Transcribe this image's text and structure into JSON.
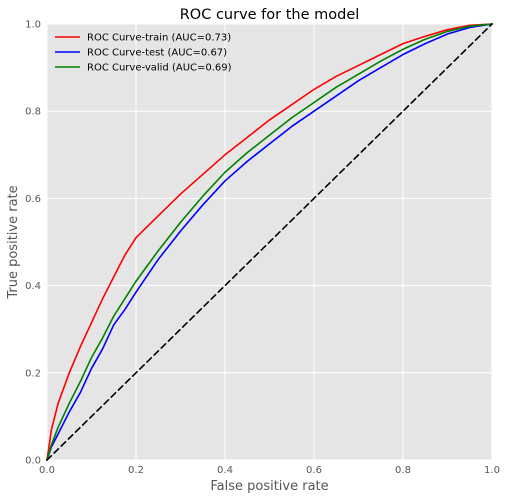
{
  "chart_data": {
    "type": "line",
    "title": "ROC curve for the model",
    "xlabel": "False positive rate",
    "ylabel": "True positive rate",
    "xlim": [
      0,
      1
    ],
    "ylim": [
      0,
      1
    ],
    "xticks": [
      "0.0",
      "0.2",
      "0.4",
      "0.6",
      "0.8",
      "1.0"
    ],
    "yticks": [
      "0.0",
      "0.2",
      "0.4",
      "0.6",
      "0.8",
      "1.0"
    ],
    "grid": true,
    "legend_position": "top-left",
    "background_color": "#e5e5e5",
    "grid_color": "#ffffff",
    "series": [
      {
        "name": "ROC Curve-train (AUC=0.73)",
        "color": "#ff0000",
        "points": [
          [
            0,
            0
          ],
          [
            0.01,
            0.07
          ],
          [
            0.025,
            0.13
          ],
          [
            0.05,
            0.2
          ],
          [
            0.075,
            0.26
          ],
          [
            0.1,
            0.315
          ],
          [
            0.125,
            0.37
          ],
          [
            0.15,
            0.42
          ],
          [
            0.175,
            0.47
          ],
          [
            0.2,
            0.51
          ],
          [
            0.25,
            0.56
          ],
          [
            0.3,
            0.61
          ],
          [
            0.35,
            0.655
          ],
          [
            0.4,
            0.7
          ],
          [
            0.45,
            0.74
          ],
          [
            0.5,
            0.78
          ],
          [
            0.55,
            0.815
          ],
          [
            0.6,
            0.85
          ],
          [
            0.65,
            0.88
          ],
          [
            0.7,
            0.905
          ],
          [
            0.75,
            0.93
          ],
          [
            0.8,
            0.955
          ],
          [
            0.85,
            0.972
          ],
          [
            0.9,
            0.987
          ],
          [
            0.95,
            0.997
          ],
          [
            1,
            1
          ]
        ]
      },
      {
        "name": "ROC Curve-test (AUC=0.67)",
        "color": "#0000ff",
        "points": [
          [
            0,
            0
          ],
          [
            0.01,
            0.03
          ],
          [
            0.025,
            0.06
          ],
          [
            0.05,
            0.11
          ],
          [
            0.075,
            0.155
          ],
          [
            0.1,
            0.21
          ],
          [
            0.125,
            0.255
          ],
          [
            0.15,
            0.31
          ],
          [
            0.175,
            0.345
          ],
          [
            0.2,
            0.385
          ],
          [
            0.25,
            0.46
          ],
          [
            0.3,
            0.525
          ],
          [
            0.35,
            0.585
          ],
          [
            0.4,
            0.64
          ],
          [
            0.45,
            0.685
          ],
          [
            0.5,
            0.725
          ],
          [
            0.55,
            0.765
          ],
          [
            0.6,
            0.8
          ],
          [
            0.65,
            0.835
          ],
          [
            0.7,
            0.87
          ],
          [
            0.75,
            0.9
          ],
          [
            0.8,
            0.93
          ],
          [
            0.85,
            0.955
          ],
          [
            0.9,
            0.977
          ],
          [
            0.95,
            0.992
          ],
          [
            1,
            1
          ]
        ]
      },
      {
        "name": "ROC Curve-valid (AUC=0.69)",
        "color": "#008000",
        "points": [
          [
            0,
            0
          ],
          [
            0.01,
            0.035
          ],
          [
            0.025,
            0.075
          ],
          [
            0.05,
            0.13
          ],
          [
            0.075,
            0.18
          ],
          [
            0.1,
            0.235
          ],
          [
            0.125,
            0.28
          ],
          [
            0.15,
            0.33
          ],
          [
            0.175,
            0.37
          ],
          [
            0.2,
            0.41
          ],
          [
            0.25,
            0.48
          ],
          [
            0.3,
            0.545
          ],
          [
            0.35,
            0.605
          ],
          [
            0.4,
            0.66
          ],
          [
            0.45,
            0.705
          ],
          [
            0.5,
            0.745
          ],
          [
            0.55,
            0.785
          ],
          [
            0.6,
            0.82
          ],
          [
            0.65,
            0.855
          ],
          [
            0.7,
            0.885
          ],
          [
            0.75,
            0.915
          ],
          [
            0.8,
            0.942
          ],
          [
            0.85,
            0.965
          ],
          [
            0.9,
            0.983
          ],
          [
            0.95,
            0.995
          ],
          [
            1,
            1
          ]
        ]
      },
      {
        "name": "",
        "color": "#000000",
        "dashed": true,
        "points": [
          [
            0,
            0
          ],
          [
            1,
            1
          ]
        ]
      }
    ]
  }
}
